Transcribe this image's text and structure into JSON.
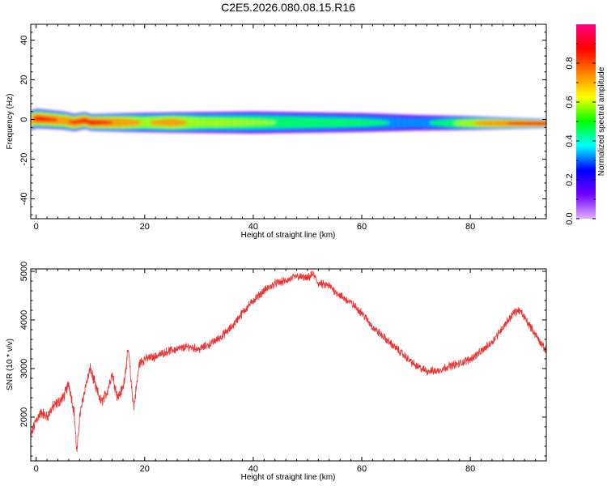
{
  "figure_title": "C2E5.2026.080.08.15.R16",
  "chart_data": [
    {
      "type": "heatmap",
      "title": "C2E5.2026.080.08.15.R16",
      "xlabel": "Height of straight line (km)",
      "ylabel": "Frequency (Hz)",
      "xlim": [
        -1,
        94
      ],
      "ylim": [
        -50,
        48
      ],
      "xticks": [
        0,
        20,
        40,
        60,
        80
      ],
      "yticks": [
        -40,
        -20,
        0,
        20,
        40
      ],
      "colorbar": {
        "label": "Normalized spectral amplitude",
        "range": [
          0,
          1
        ],
        "ticks": [
          "0.0",
          "0.2",
          "0.4",
          "0.6",
          "0.8"
        ],
        "colormap": [
          "#e0b0ff",
          "#7000ff",
          "#0000ff",
          "#00ffff",
          "#00ff00",
          "#ffff00",
          "#ff8000",
          "#ff0000",
          "#ff0080"
        ]
      },
      "ridge_center_hz": {
        "x": [
          -1,
          0,
          5,
          7,
          9,
          10,
          20,
          40,
          60,
          80,
          94
        ],
        "y": [
          -0.5,
          0.5,
          -0.5,
          -1.5,
          -0.5,
          -1.5,
          -1.5,
          -1.5,
          -1.5,
          -1.8,
          -2
        ]
      },
      "peak_amplitude": {
        "x": [
          -1,
          0,
          5,
          10,
          15,
          20,
          25,
          30,
          40,
          50,
          60,
          65,
          70,
          75,
          80,
          85,
          94
        ],
        "y": [
          0.8,
          0.9,
          0.85,
          0.9,
          0.85,
          0.7,
          0.8,
          0.65,
          0.6,
          0.55,
          0.5,
          0.45,
          0.4,
          0.5,
          0.7,
          0.85,
          0.9
        ]
      },
      "band_halfwidth_hz": {
        "x": [
          -1,
          10,
          20,
          40,
          60,
          80,
          94
        ],
        "y": [
          3,
          2.5,
          3,
          3.5,
          3,
          2,
          1.2
        ]
      }
    },
    {
      "type": "line",
      "xlabel": "Height of straight line (km)",
      "ylabel": "SNR (10 * v/v)",
      "xlim": [
        -1,
        94
      ],
      "ylim": [
        1100,
        5050
      ],
      "xticks": [
        0,
        20,
        40,
        60,
        80
      ],
      "yticks": [
        2000,
        3000,
        4000,
        5000
      ],
      "line_color": "#ee3333",
      "series": [
        {
          "x": [
            -1,
            0,
            1,
            2,
            3,
            4,
            5,
            6,
            7,
            7.5,
            8,
            9,
            10,
            11,
            12,
            13,
            14,
            15,
            16,
            17,
            17.5,
            18,
            19,
            20,
            22,
            24,
            26,
            28,
            30,
            32,
            34,
            36,
            38,
            40,
            42,
            44,
            46,
            48,
            50,
            51,
            52,
            54,
            56,
            58,
            60,
            62,
            64,
            66,
            68,
            70,
            72,
            74,
            76,
            78,
            80,
            82,
            84,
            86,
            88,
            89,
            90,
            92,
            94
          ],
          "y": [
            1600,
            1950,
            2100,
            2000,
            2200,
            2300,
            2400,
            2700,
            2100,
            1250,
            2000,
            2600,
            3000,
            2600,
            2300,
            2500,
            2900,
            2400,
            2600,
            3400,
            2700,
            2200,
            3100,
            3200,
            3250,
            3350,
            3400,
            3450,
            3400,
            3500,
            3650,
            3850,
            4150,
            4400,
            4600,
            4750,
            4800,
            4900,
            4850,
            4950,
            4750,
            4700,
            4500,
            4350,
            4150,
            3850,
            3650,
            3450,
            3250,
            3050,
            2950,
            2950,
            3050,
            3100,
            3200,
            3350,
            3550,
            3850,
            4150,
            4200,
            4050,
            3700,
            3350
          ]
        }
      ]
    }
  ]
}
